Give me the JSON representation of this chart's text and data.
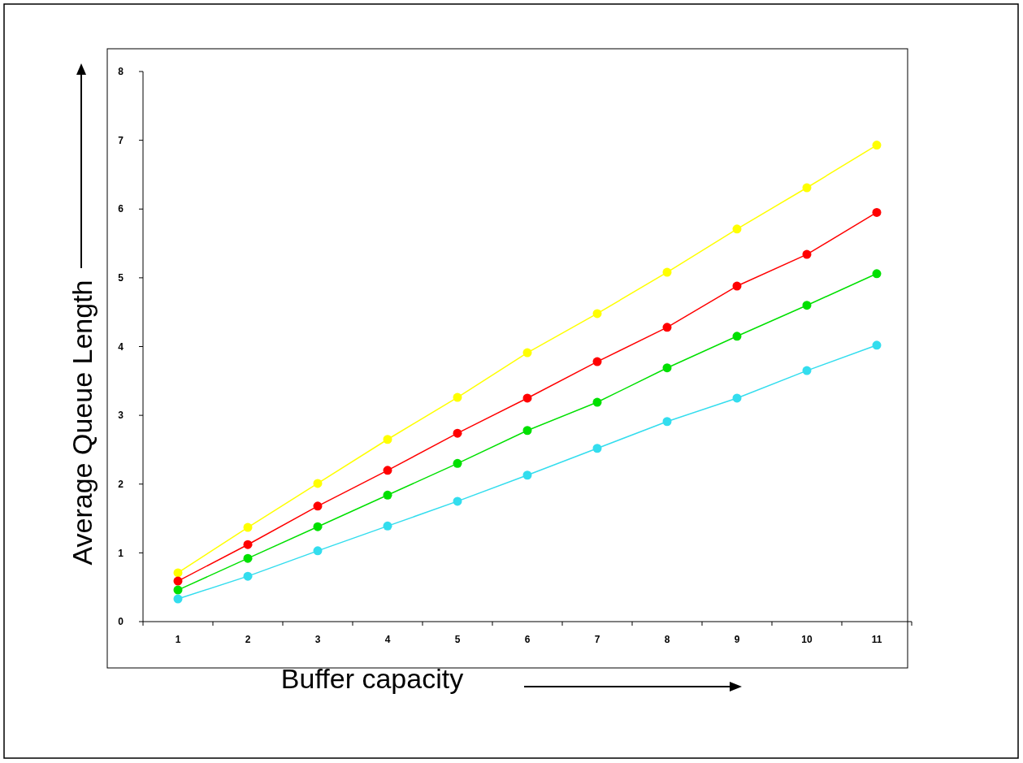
{
  "chart_data": {
    "type": "line",
    "xlabel": "Buffer capacity",
    "ylabel": "Average Queue Length",
    "categories": [
      "1",
      "2",
      "3",
      "4",
      "5",
      "6",
      "7",
      "8",
      "9",
      "10",
      "11"
    ],
    "ylim": [
      0,
      8
    ],
    "yticks": [
      0,
      1,
      2,
      3,
      4,
      5,
      6,
      7,
      8
    ],
    "grid": false,
    "marker": "circle",
    "line_style": "solid",
    "series": [
      {
        "color": "#ffff00",
        "values": [
          0.71,
          1.37,
          2.01,
          2.65,
          3.26,
          3.91,
          4.48,
          5.08,
          5.71,
          6.31,
          6.93
        ]
      },
      {
        "color": "#ff0000",
        "values": [
          0.59,
          1.12,
          1.68,
          2.2,
          2.74,
          3.25,
          3.78,
          4.28,
          4.88,
          5.34,
          5.95
        ]
      },
      {
        "color": "#00e000",
        "values": [
          0.46,
          0.92,
          1.38,
          1.84,
          2.3,
          2.78,
          3.19,
          3.69,
          4.15,
          4.6,
          5.06
        ]
      },
      {
        "color": "#33ddee",
        "values": [
          0.33,
          0.66,
          1.03,
          1.39,
          1.75,
          2.13,
          2.52,
          2.91,
          3.25,
          3.65,
          4.02
        ]
      }
    ]
  }
}
